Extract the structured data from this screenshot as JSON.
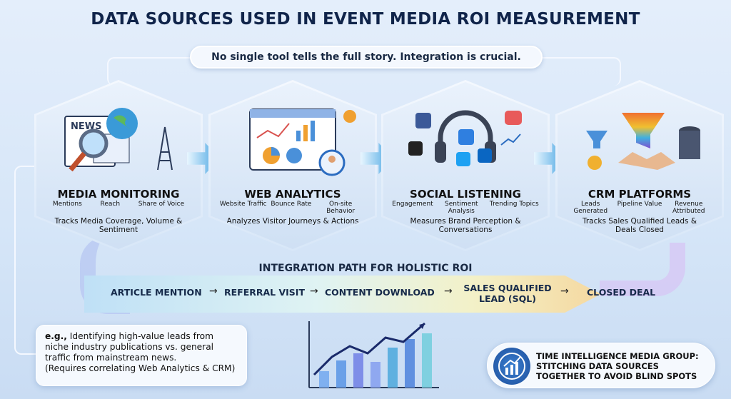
{
  "title": "DATA SOURCES USED IN EVENT MEDIA ROI MEASUREMENT",
  "banner": "No single tool tells the full story. Integration is crucial.",
  "sources": [
    {
      "name": "MEDIA MONITORING",
      "metrics": [
        "Mentions",
        "Reach",
        "Share of Voice"
      ],
      "description": "Tracks Media Coverage, Volume & Sentiment",
      "icon": "newspaper-globe-magnifier-icon",
      "icon_text": "NEWS"
    },
    {
      "name": "WEB ANALYTICS",
      "metrics": [
        "Website Traffic",
        "Bounce Rate",
        "On-site Behavior"
      ],
      "description": "Analyzes Visitor Journeys & Actions",
      "icon": "browser-dashboard-icon"
    },
    {
      "name": "SOCIAL LISTENING",
      "metrics": [
        "Engagement",
        "Sentiment Analysis",
        "Trending Topics"
      ],
      "description": "Measures Brand Perception & Conversations",
      "icon": "headphones-social-icon"
    },
    {
      "name": "CRM PLATFORMS",
      "metrics": [
        "Leads Generated",
        "Pipeline Value",
        "Revenue Attributed"
      ],
      "description": "Tracks Sales Qualified Leads & Deals Closed",
      "icon": "funnel-handshake-database-icon"
    }
  ],
  "integration_label": "INTEGRATION PATH FOR HOLISTIC ROI",
  "path_steps": [
    "ARTICLE MENTION",
    "REFERRAL VISIT",
    "CONTENT DOWNLOAD",
    "SALES QUALIFIED LEAD (SQL)",
    "CLOSED DEAL"
  ],
  "callout": {
    "lead": "e.g.,",
    "text": "Identifying high-value leads from niche industry publications vs. general traffic from mainstream news.",
    "note": "(Requires correlating Web Analytics & CRM)"
  },
  "badge": {
    "text": "TIME INTELLIGENCE MEDIA GROUP: STITCHING DATA SOURCES TOGETHER TO AVOID BLIND SPOTS",
    "icon": "growth-chart-icon"
  },
  "colors": {
    "title": "#10244a",
    "arrow": "#3d9fe0",
    "background": "#d6e6f8"
  }
}
